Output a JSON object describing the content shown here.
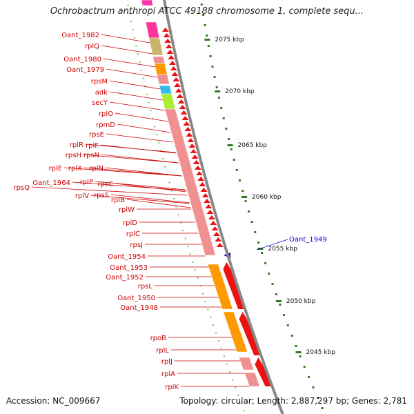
{
  "title": "Ochrobactrum anthropi ATCC 49188 chromosome 1, complete sequ...",
  "footer": {
    "accession": "Accession: NC_009667",
    "summary": "Topology: circular; Length: 2,887,297 bp; Genes: 2,781"
  },
  "colors": {
    "label_red": "#cc0000",
    "label_blue": "#0000cc",
    "tick_green": "#2e7d1a",
    "gene_light_red": "#f09090",
    "gene_red": "#ee1111",
    "backbone_gray": "#888888"
  },
  "scale_ticks": [
    "2075 kbp",
    "2070 kbp",
    "2065 kbp",
    "2060 kbp",
    "2055 kbp",
    "2050 kbp",
    "2045 kbp"
  ],
  "gene_labels_red": [
    "Oant_1982",
    "rplQ",
    "Oant_1980",
    "Oant_1979",
    "rpsM",
    "adk",
    "secY",
    "rplO",
    "rpmD",
    "rpsE",
    "rplR",
    "rplF",
    "rpsH",
    "rpsN",
    "rplE",
    "rplX",
    "rplN",
    "Oant_1964",
    "rplP",
    "rpsQ",
    "rpsC",
    "rplV",
    "rpsS",
    "rplB",
    "rplW",
    "rplD",
    "rplC",
    "rpsJ",
    "Oant_1954",
    "Oant_1953",
    "Oant_1952",
    "rpsL",
    "Oant_1950",
    "Oant_1948",
    "rpoB",
    "rplL",
    "rplJ",
    "rplA",
    "rplK"
  ],
  "gene_label_blue": "Oant_1949"
}
